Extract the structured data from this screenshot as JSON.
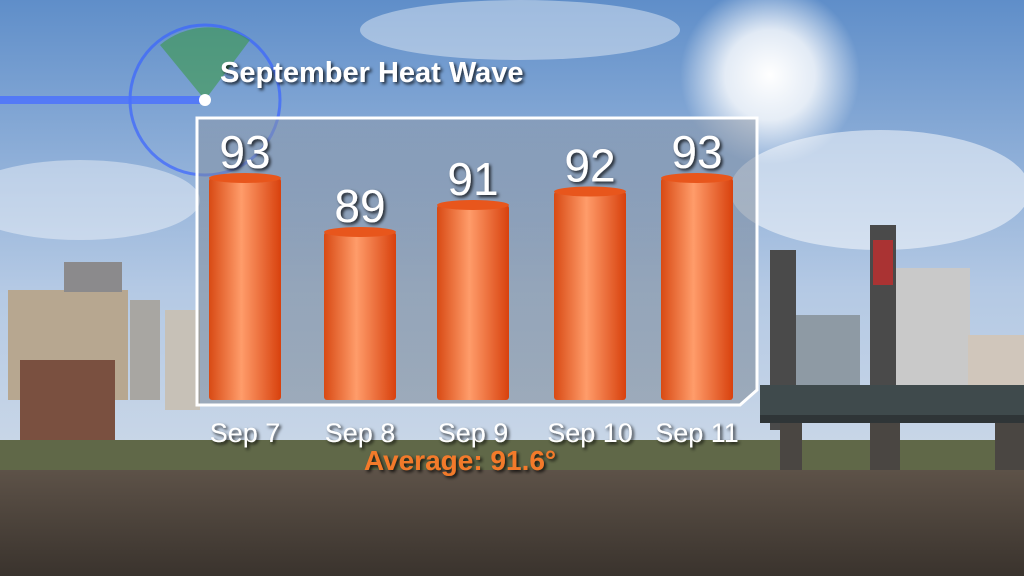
{
  "chart_data": {
    "type": "bar",
    "title": "September Heat Wave",
    "categories": [
      "Sep 7",
      "Sep 8",
      "Sep 9",
      "Sep 10",
      "Sep 11"
    ],
    "values": [
      93,
      89,
      91,
      92,
      93
    ],
    "color": "#f0632a",
    "annotation": "Average: 91.6°"
  }
}
